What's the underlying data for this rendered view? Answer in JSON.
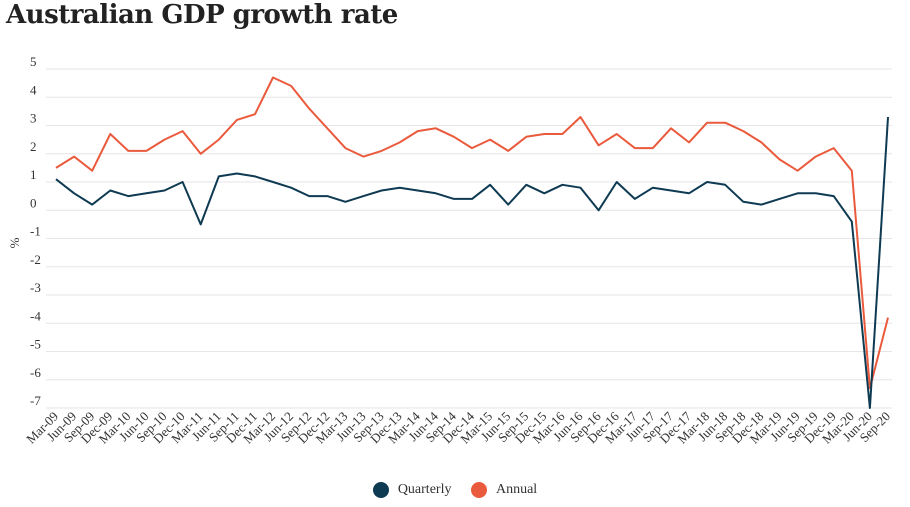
{
  "chart_data": {
    "type": "line",
    "title": "Australian GDP growth rate",
    "xlabel": "",
    "ylabel": "%",
    "ylim": [
      -7,
      5
    ],
    "yticks": [
      5,
      4,
      3,
      2,
      1,
      0,
      -1,
      -2,
      -3,
      -4,
      -5,
      -6,
      -7
    ],
    "grid": true,
    "legend_position": "bottom",
    "categories": [
      "Mar-09",
      "Jun-09",
      "Sep-09",
      "Dec-09",
      "Mar-10",
      "Jun-10",
      "Sep-10",
      "Dec-10",
      "Mar-11",
      "Jun-11",
      "Sep-11",
      "Dec-11",
      "Mar-12",
      "Jun-12",
      "Sep-12",
      "Dec-12",
      "Mar-13",
      "Jun-13",
      "Sep-13",
      "Dec-13",
      "Mar-14",
      "Jun-14",
      "Sep-14",
      "Dec-14",
      "Mar-15",
      "Jun-15",
      "Sep-15",
      "Dec-15",
      "Mar-16",
      "Jun-16",
      "Sep-16",
      "Dec-16",
      "Mar-17",
      "Jun-17",
      "Sep-17",
      "Dec-17",
      "Mar-18",
      "Jun-18",
      "Sep-18",
      "Dec-18",
      "Mar-19",
      "Jun-19",
      "Sep-19",
      "Dec-19",
      "Mar-20",
      "Jun-20",
      "Sep-20"
    ],
    "series": [
      {
        "name": "Quarterly",
        "color": "#0e3a52",
        "values": [
          1.1,
          0.6,
          0.2,
          0.7,
          0.5,
          0.6,
          0.7,
          1.0,
          -0.5,
          1.2,
          1.3,
          1.2,
          1.0,
          0.8,
          0.5,
          0.5,
          0.3,
          0.5,
          0.7,
          0.8,
          0.7,
          0.6,
          0.4,
          0.4,
          0.9,
          0.2,
          0.9,
          0.6,
          0.9,
          0.8,
          0.0,
          1.0,
          0.4,
          0.8,
          0.7,
          0.6,
          1.0,
          0.9,
          0.3,
          0.2,
          0.4,
          0.6,
          0.6,
          0.5,
          -0.4,
          -7.0,
          3.3
        ]
      },
      {
        "name": "Annual",
        "color": "#ea5a3d",
        "values": [
          1.5,
          1.9,
          1.4,
          2.7,
          2.1,
          2.1,
          2.5,
          2.8,
          2.0,
          2.5,
          3.2,
          3.4,
          4.7,
          4.4,
          3.6,
          2.9,
          2.2,
          1.9,
          2.1,
          2.4,
          2.8,
          2.9,
          2.6,
          2.2,
          2.5,
          2.1,
          2.6,
          2.7,
          2.7,
          3.3,
          2.3,
          2.7,
          2.2,
          2.2,
          2.9,
          2.4,
          3.1,
          3.1,
          2.8,
          2.4,
          1.8,
          1.4,
          1.9,
          2.2,
          1.4,
          -6.3,
          -3.8
        ]
      }
    ]
  }
}
